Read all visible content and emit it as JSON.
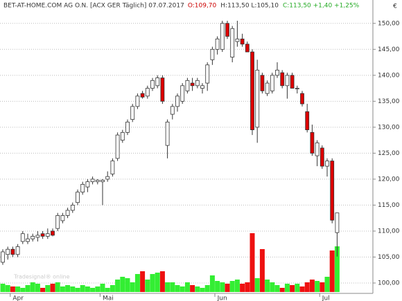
{
  "chart_data": {
    "type": "candlestick",
    "title": "BET-AT-HOME.COM AG O.N. [ACX GER  Täglich] 07.07.2017",
    "info": [
      {
        "text": "O:109,70",
        "color": "#cc0000"
      },
      {
        "text": "H:113,50 L:105,10",
        "color": "#333333"
      },
      {
        "text": "C:113,50 +1,40 +1,25%",
        "color": "#22aa22"
      }
    ],
    "currency": "€",
    "watermark": "Tradesignal® online",
    "categories": [
      null,
      null,
      "Apr",
      null,
      null,
      null,
      null,
      null,
      null,
      null,
      null,
      null,
      null,
      null,
      null,
      null,
      null,
      null,
      null,
      null,
      "Mai",
      null,
      null,
      null,
      null,
      null,
      null,
      null,
      null,
      null,
      null,
      null,
      null,
      null,
      null,
      null,
      null,
      null,
      null,
      null,
      null,
      null,
      null,
      "Jun",
      null,
      null,
      null,
      null,
      null,
      null,
      null,
      null,
      null,
      null,
      null,
      null,
      null,
      null,
      null,
      null,
      null,
      null,
      null,
      null,
      "Jul",
      null,
      null,
      null
    ],
    "open": [
      104.0,
      105.5,
      106.5,
      105.5,
      108.0,
      108.0,
      108.5,
      108.8,
      109.5,
      109.0,
      110.0,
      110.5,
      112.0,
      113.0,
      114.0,
      115.5,
      117.5,
      118.5,
      119.5,
      119.5,
      119.5,
      120.0,
      121.0,
      124.0,
      127.5,
      129.0,
      131.5,
      134.0,
      136.5,
      136.0,
      137.5,
      138.0,
      139.5,
      126.5,
      132.5,
      134.0,
      135.0,
      137.0,
      138.5,
      138.0,
      137.5,
      138.5,
      143.0,
      145.0,
      145.0,
      150.0,
      143.5,
      146.5,
      147.0,
      146.0,
      144.5,
      130.0,
      140.0,
      136.5,
      137.0,
      140.0,
      140.5,
      138.0,
      140.0,
      137.5,
      136.5,
      133.0,
      129.0,
      124.5,
      126.0,
      122.5,
      123.5,
      109.7
    ],
    "high": [
      106.5,
      107.0,
      107.0,
      107.5,
      110.0,
      109.5,
      109.5,
      110.0,
      110.0,
      110.5,
      110.5,
      113.5,
      113.5,
      114.5,
      115.5,
      118.0,
      119.5,
      120.0,
      120.5,
      120.0,
      120.0,
      121.5,
      124.0,
      129.0,
      129.5,
      131.5,
      134.5,
      136.5,
      137.0,
      138.0,
      139.5,
      140.0,
      140.0,
      131.5,
      134.5,
      136.5,
      138.5,
      139.5,
      139.5,
      139.5,
      138.5,
      142.5,
      145.5,
      147.5,
      150.5,
      150.5,
      149.5,
      150.5,
      148.0,
      146.5,
      145.0,
      143.0,
      140.5,
      139.0,
      140.5,
      142.5,
      141.0,
      140.5,
      140.5,
      138.0,
      137.0,
      134.5,
      130.5,
      127.5,
      126.5,
      124.0,
      124.0,
      113.5
    ],
    "low": [
      103.5,
      104.5,
      105.0,
      105.0,
      107.5,
      107.5,
      108.0,
      108.0,
      108.5,
      108.5,
      109.0,
      110.0,
      111.5,
      112.5,
      113.5,
      115.0,
      117.0,
      117.5,
      119.0,
      119.0,
      115.0,
      119.5,
      120.5,
      123.5,
      127.0,
      128.5,
      131.0,
      133.5,
      135.5,
      135.5,
      137.0,
      137.5,
      134.5,
      124.0,
      131.5,
      133.0,
      134.5,
      136.5,
      137.0,
      137.5,
      136.5,
      137.0,
      142.0,
      144.0,
      144.5,
      147.0,
      142.5,
      145.5,
      145.5,
      144.5,
      128.5,
      127.0,
      136.5,
      136.0,
      136.5,
      139.5,
      137.5,
      135.5,
      137.5,
      136.5,
      134.0,
      129.0,
      124.5,
      122.5,
      122.0,
      120.5,
      111.5,
      105.1
    ],
    "close": [
      106.0,
      106.5,
      105.5,
      107.0,
      109.5,
      108.5,
      109.0,
      109.2,
      109.0,
      109.5,
      109.2,
      113.0,
      113.0,
      114.0,
      115.0,
      117.5,
      119.0,
      119.5,
      120.0,
      119.8,
      119.8,
      120.5,
      123.5,
      128.5,
      129.0,
      131.0,
      134.0,
      136.0,
      135.8,
      137.5,
      139.0,
      139.5,
      135.0,
      131.0,
      134.0,
      136.0,
      138.0,
      139.0,
      138.0,
      139.0,
      138.0,
      142.0,
      145.0,
      147.0,
      150.0,
      147.5,
      149.0,
      147.0,
      146.0,
      144.5,
      129.5,
      141.0,
      137.0,
      138.5,
      140.0,
      141.0,
      138.0,
      140.0,
      137.5,
      137.5,
      134.5,
      129.5,
      125.0,
      127.0,
      122.5,
      123.5,
      112.1,
      113.5
    ],
    "volume": [
      12,
      10,
      8,
      8,
      6,
      10,
      14,
      12,
      6,
      10,
      12,
      14,
      8,
      10,
      8,
      6,
      10,
      8,
      6,
      8,
      12,
      6,
      10,
      18,
      22,
      20,
      14,
      26,
      30,
      18,
      26,
      28,
      30,
      14,
      14,
      10,
      8,
      14,
      10,
      8,
      6,
      10,
      24,
      16,
      14,
      12,
      16,
      18,
      12,
      14,
      85,
      20,
      62,
      18,
      14,
      10,
      6,
      12,
      10,
      12,
      8,
      14,
      18,
      16,
      14,
      22,
      60,
      66
    ],
    "up_color": "#ffffff",
    "down_color": "#dd0000",
    "volume_up_color": "#33ee33",
    "volume_down_color": "#ee1111",
    "ylim": [
      98,
      154.5
    ],
    "yticks": [
      {
        "value": 100,
        "label": "100,00"
      },
      {
        "value": 105,
        "label": "105,00"
      },
      {
        "value": 110,
        "label": "110,00"
      },
      {
        "value": 115,
        "label": "115,00"
      },
      {
        "value": 120,
        "label": "120,00"
      },
      {
        "value": 125,
        "label": "125,00"
      },
      {
        "value": 130,
        "label": "130,00"
      },
      {
        "value": 135,
        "label": "135,00"
      },
      {
        "value": 140,
        "label": "140,00"
      },
      {
        "value": 145,
        "label": "145,00"
      },
      {
        "value": 150,
        "label": "150,00"
      }
    ],
    "grid": true
  }
}
